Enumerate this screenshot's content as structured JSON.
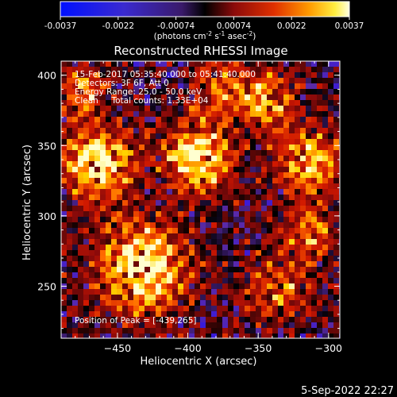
{
  "colorbar": {
    "ticks": [
      "-0.0037",
      "-0.0022",
      "-0.00074",
      "0.00074",
      "0.0022",
      "0.0037"
    ],
    "unit_label": "(photons cm",
    "unit_label_parts": [
      "(photons cm",
      "-2",
      " s",
      "-1",
      " asec",
      "-2",
      ")"
    ]
  },
  "plot": {
    "title": "Reconstructed RHESSI Image",
    "xlabel": "Heliocentric X (arcsec)",
    "ylabel": "Heliocentric Y (arcsec)",
    "x_ticks": [
      "-450",
      "-400",
      "-350",
      "-300"
    ],
    "y_ticks": [
      "400",
      "350",
      "300",
      "250"
    ],
    "xlim": [
      -490,
      -292
    ],
    "ylim": [
      213,
      410
    ],
    "info_lines": [
      "15-Feb-2017 05:35:40.000 to 05:41:40.000",
      "Detectors: 3F 6F, Att 0",
      "Energy Range: 25.0 - 50.0 keV",
      "Clean     Total counts: 1.33E+04"
    ],
    "peak_label": "Position of Peak = [-439,265]"
  },
  "footer": {
    "date": "5-Sep-2022 22:27"
  },
  "colors": {
    "colormap": [
      "#0010ff",
      "#3a1bd8",
      "#5a2aa8",
      "#000000",
      "#8a0a0a",
      "#d01800",
      "#ff6a00",
      "#ffd400",
      "#ffffd0"
    ]
  }
}
